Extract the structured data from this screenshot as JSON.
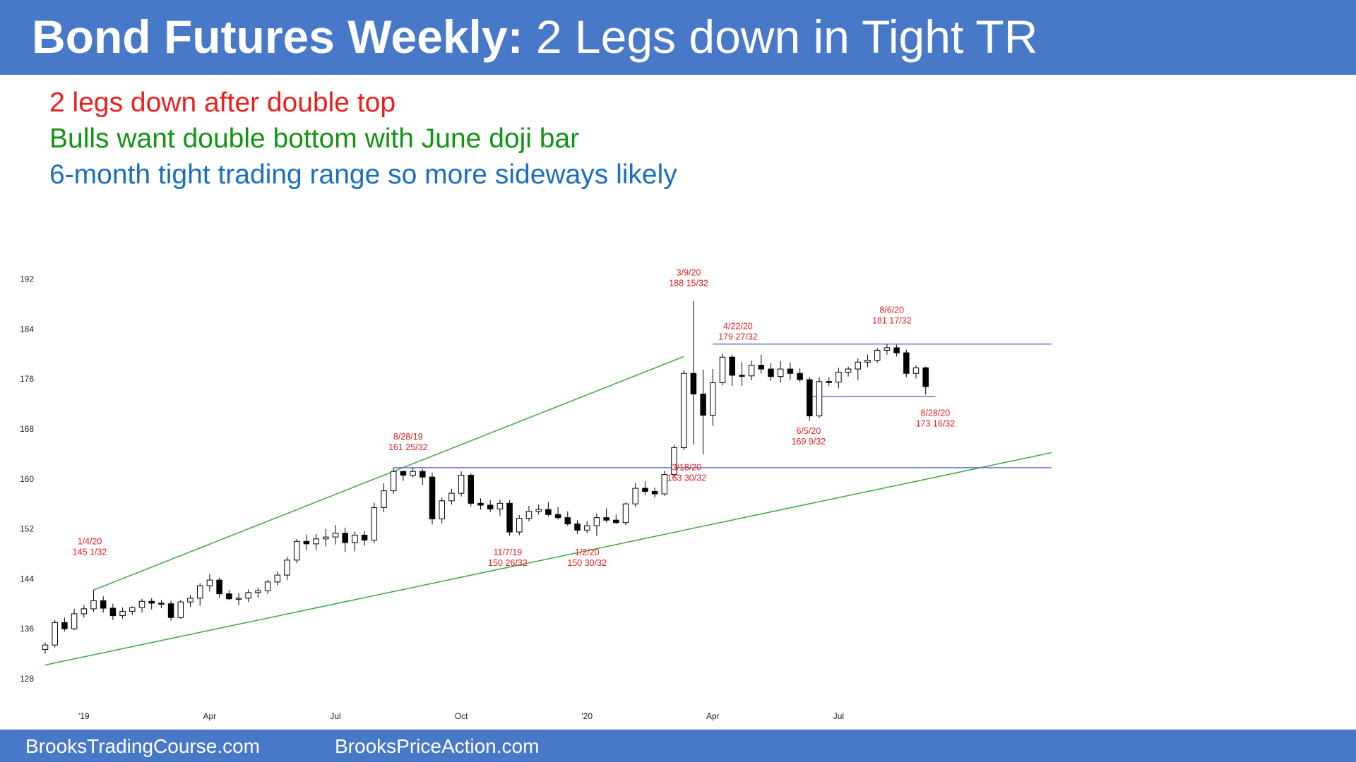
{
  "header": {
    "title_bold": "Bond Futures Weekly:",
    "title_rest": " 2 Legs down in Tight TR"
  },
  "notes": [
    {
      "text": "2 legs down after double top",
      "color": "#e8201e"
    },
    {
      "text": "Bulls want double bottom with June doji bar",
      "color": "#139413"
    },
    {
      "text": "6-month tight trading range so more sideways likely",
      "color": "#1a6fbd"
    }
  ],
  "footer": {
    "left": "BrooksTradingCourse.com",
    "right": "BrooksPriceAction.com"
  },
  "colors": {
    "header_bg": "#4878c8",
    "footer_bg": "#4878c8",
    "trend_line": "#3aaa3a",
    "range_line": "#6b70d8",
    "annotation": "#e0201e",
    "bear_candle": "#000000",
    "bull_candle": "#ffffff"
  },
  "chart_data": {
    "type": "candlestick",
    "timeframe": "weekly",
    "yticks": [
      128,
      136,
      144,
      152,
      160,
      168,
      176,
      184,
      192
    ],
    "ylim": [
      126,
      196
    ],
    "xlim": [
      0,
      104
    ],
    "xticks": [
      {
        "label": "'19",
        "index": 4
      },
      {
        "label": "Apr",
        "index": 17
      },
      {
        "label": "Jul",
        "index": 30
      },
      {
        "label": "Oct",
        "index": 43
      },
      {
        "label": "'20",
        "index": 56
      },
      {
        "label": "Apr",
        "index": 69
      },
      {
        "label": "Jul",
        "index": 82
      }
    ],
    "candles": [
      [
        132.7,
        133.8,
        132.0,
        133.4
      ],
      [
        133.4,
        137.4,
        133.0,
        137.0
      ],
      [
        137.0,
        137.8,
        135.6,
        136.0
      ],
      [
        136.0,
        139.2,
        135.8,
        138.4
      ],
      [
        138.4,
        139.8,
        137.8,
        139.2
      ],
      [
        139.2,
        142.2,
        138.7,
        140.5
      ],
      [
        140.5,
        141.2,
        138.6,
        139.3
      ],
      [
        139.3,
        140.0,
        137.4,
        138.1
      ],
      [
        138.1,
        139.4,
        137.6,
        138.8
      ],
      [
        138.8,
        139.6,
        138.2,
        139.4
      ],
      [
        139.4,
        140.8,
        138.6,
        140.4
      ],
      [
        140.4,
        140.9,
        139.1,
        140.1
      ],
      [
        140.1,
        140.6,
        139.3,
        140.0
      ],
      [
        140.0,
        140.5,
        137.3,
        137.8
      ],
      [
        137.8,
        140.6,
        137.6,
        140.3
      ],
      [
        140.3,
        141.4,
        139.5,
        140.9
      ],
      [
        140.9,
        143.3,
        139.7,
        142.9
      ],
      [
        142.9,
        144.8,
        142.0,
        143.8
      ],
      [
        143.8,
        144.2,
        141.0,
        141.6
      ],
      [
        141.6,
        142.2,
        140.6,
        140.8
      ],
      [
        140.8,
        141.7,
        139.8,
        140.9
      ],
      [
        140.9,
        142.3,
        140.3,
        141.8
      ],
      [
        141.8,
        142.6,
        141.0,
        142.1
      ],
      [
        142.1,
        143.8,
        141.6,
        143.5
      ],
      [
        143.5,
        145.2,
        142.9,
        144.6
      ],
      [
        144.6,
        147.5,
        143.8,
        147.0
      ],
      [
        147.0,
        150.4,
        146.5,
        150.0
      ],
      [
        150.0,
        151.1,
        148.6,
        149.6
      ],
      [
        149.6,
        151.2,
        148.6,
        150.4
      ],
      [
        150.4,
        152.0,
        149.2,
        150.7
      ],
      [
        150.7,
        152.6,
        149.5,
        151.3
      ],
      [
        151.3,
        152.2,
        148.3,
        149.8
      ],
      [
        149.8,
        151.6,
        148.4,
        151.0
      ],
      [
        151.0,
        151.7,
        149.3,
        150.2
      ],
      [
        150.2,
        156.2,
        149.7,
        155.4
      ],
      [
        155.4,
        159.3,
        154.7,
        158.1
      ],
      [
        158.1,
        161.8,
        157.6,
        161.2
      ],
      [
        161.2,
        161.3,
        159.7,
        160.6
      ],
      [
        160.6,
        161.8,
        160.2,
        161.2
      ],
      [
        161.2,
        161.6,
        159.0,
        160.3
      ],
      [
        160.3,
        161.0,
        152.7,
        153.6
      ],
      [
        153.6,
        157.0,
        152.9,
        156.5
      ],
      [
        156.5,
        158.4,
        155.9,
        157.7
      ],
      [
        157.7,
        161.2,
        157.2,
        160.6
      ],
      [
        160.6,
        160.9,
        155.6,
        156.1
      ],
      [
        156.1,
        156.9,
        155.1,
        155.8
      ],
      [
        155.8,
        156.6,
        154.7,
        155.2
      ],
      [
        155.2,
        156.7,
        154.1,
        156.1
      ],
      [
        156.1,
        156.6,
        150.9,
        151.5
      ],
      [
        151.5,
        154.2,
        151.0,
        153.7
      ],
      [
        153.7,
        155.7,
        153.2,
        154.8
      ],
      [
        154.8,
        155.9,
        154.3,
        155.1
      ],
      [
        155.1,
        156.3,
        154.0,
        154.3
      ],
      [
        154.3,
        155.5,
        153.5,
        153.8
      ],
      [
        153.8,
        154.8,
        152.5,
        152.8
      ],
      [
        152.8,
        153.4,
        151.2,
        151.8
      ],
      [
        151.8,
        153.2,
        151.3,
        152.5
      ],
      [
        152.5,
        154.5,
        150.9,
        153.8
      ],
      [
        153.8,
        155.3,
        153.0,
        153.4
      ],
      [
        153.4,
        154.3,
        152.8,
        153.0
      ],
      [
        153.0,
        156.2,
        152.6,
        156.0
      ],
      [
        156.0,
        159.3,
        155.5,
        158.5
      ],
      [
        158.5,
        159.6,
        157.4,
        158.0
      ],
      [
        158.0,
        158.6,
        157.0,
        157.6
      ],
      [
        157.6,
        161.3,
        157.3,
        160.7
      ],
      [
        160.7,
        165.5,
        160.2,
        165.0
      ],
      [
        165.0,
        177.4,
        164.6,
        176.9
      ],
      [
        176.9,
        188.5,
        165.5,
        173.6
      ],
      [
        173.6,
        177.5,
        163.9,
        170.2
      ],
      [
        170.2,
        177.6,
        168.5,
        175.4
      ],
      [
        175.4,
        180.1,
        175.0,
        179.5
      ],
      [
        179.5,
        179.9,
        174.9,
        176.6
      ],
      [
        176.6,
        178.7,
        174.9,
        176.5
      ],
      [
        176.5,
        178.9,
        175.8,
        178.2
      ],
      [
        178.2,
        179.9,
        176.9,
        177.6
      ],
      [
        177.6,
        178.5,
        175.7,
        176.4
      ],
      [
        176.4,
        178.9,
        175.4,
        177.6
      ],
      [
        177.6,
        178.6,
        175.9,
        176.9
      ],
      [
        176.9,
        177.7,
        175.5,
        175.9
      ],
      [
        175.9,
        176.3,
        169.3,
        170.1
      ],
      [
        170.1,
        176.3,
        169.8,
        175.6
      ],
      [
        175.6,
        176.3,
        174.9,
        175.5
      ],
      [
        175.5,
        177.8,
        174.5,
        177.1
      ],
      [
        177.1,
        178.0,
        176.4,
        177.6
      ],
      [
        177.6,
        179.3,
        175.8,
        178.7
      ],
      [
        178.7,
        179.9,
        177.9,
        179.0
      ],
      [
        179.0,
        181.0,
        178.6,
        180.6
      ],
      [
        180.6,
        181.6,
        179.9,
        181.0
      ],
      [
        181.0,
        181.5,
        179.6,
        180.2
      ],
      [
        180.2,
        180.7,
        176.3,
        176.9
      ],
      [
        176.9,
        178.2,
        176.1,
        177.8
      ],
      [
        177.8,
        178.0,
        173.5,
        174.8
      ]
    ],
    "trend_lines": [
      {
        "from": [
          0,
          130.2
        ],
        "to": [
          104,
          164.2
        ]
      },
      {
        "from": [
          5,
          142.2
        ],
        "to": [
          66,
          179.6
        ]
      }
    ],
    "range_lines": [
      {
        "from": [
          36,
          161.8
        ],
        "to": [
          104,
          161.8
        ]
      },
      {
        "from": [
          69,
          181.6
        ],
        "to": [
          104,
          181.6
        ]
      },
      {
        "from": [
          79,
          173.2
        ],
        "to": [
          92,
          173.2
        ]
      }
    ],
    "annotations": [
      {
        "lines": [
          "1/4/20",
          "145 1/32"
        ],
        "x": 4.6,
        "y": 149.5
      },
      {
        "lines": [
          "8/28/19",
          "161 25/32"
        ],
        "x": 37.5,
        "y": 166.3
      },
      {
        "lines": [
          "11/7/19",
          "150 26/32"
        ],
        "x": 47.8,
        "y": 147.8
      },
      {
        "lines": [
          "1/2/20",
          "150 30/32"
        ],
        "x": 56.0,
        "y": 147.8
      },
      {
        "lines": [
          "3/9/20",
          "188 15/32"
        ],
        "x": 66.5,
        "y": 192.6
      },
      {
        "lines": [
          "3/18/20",
          "163 30/32"
        ],
        "x": 66.3,
        "y": 161.4
      },
      {
        "lines": [
          "4/22/20",
          "179 27/32"
        ],
        "x": 71.6,
        "y": 184.0
      },
      {
        "lines": [
          "6/5/20",
          "169 9/32"
        ],
        "x": 78.9,
        "y": 167.2
      },
      {
        "lines": [
          "8/6/20",
          "181 17/32"
        ],
        "x": 87.5,
        "y": 186.6
      },
      {
        "lines": [
          "8/28/20",
          "173 16/32"
        ],
        "x": 92.0,
        "y": 170.1
      }
    ]
  }
}
